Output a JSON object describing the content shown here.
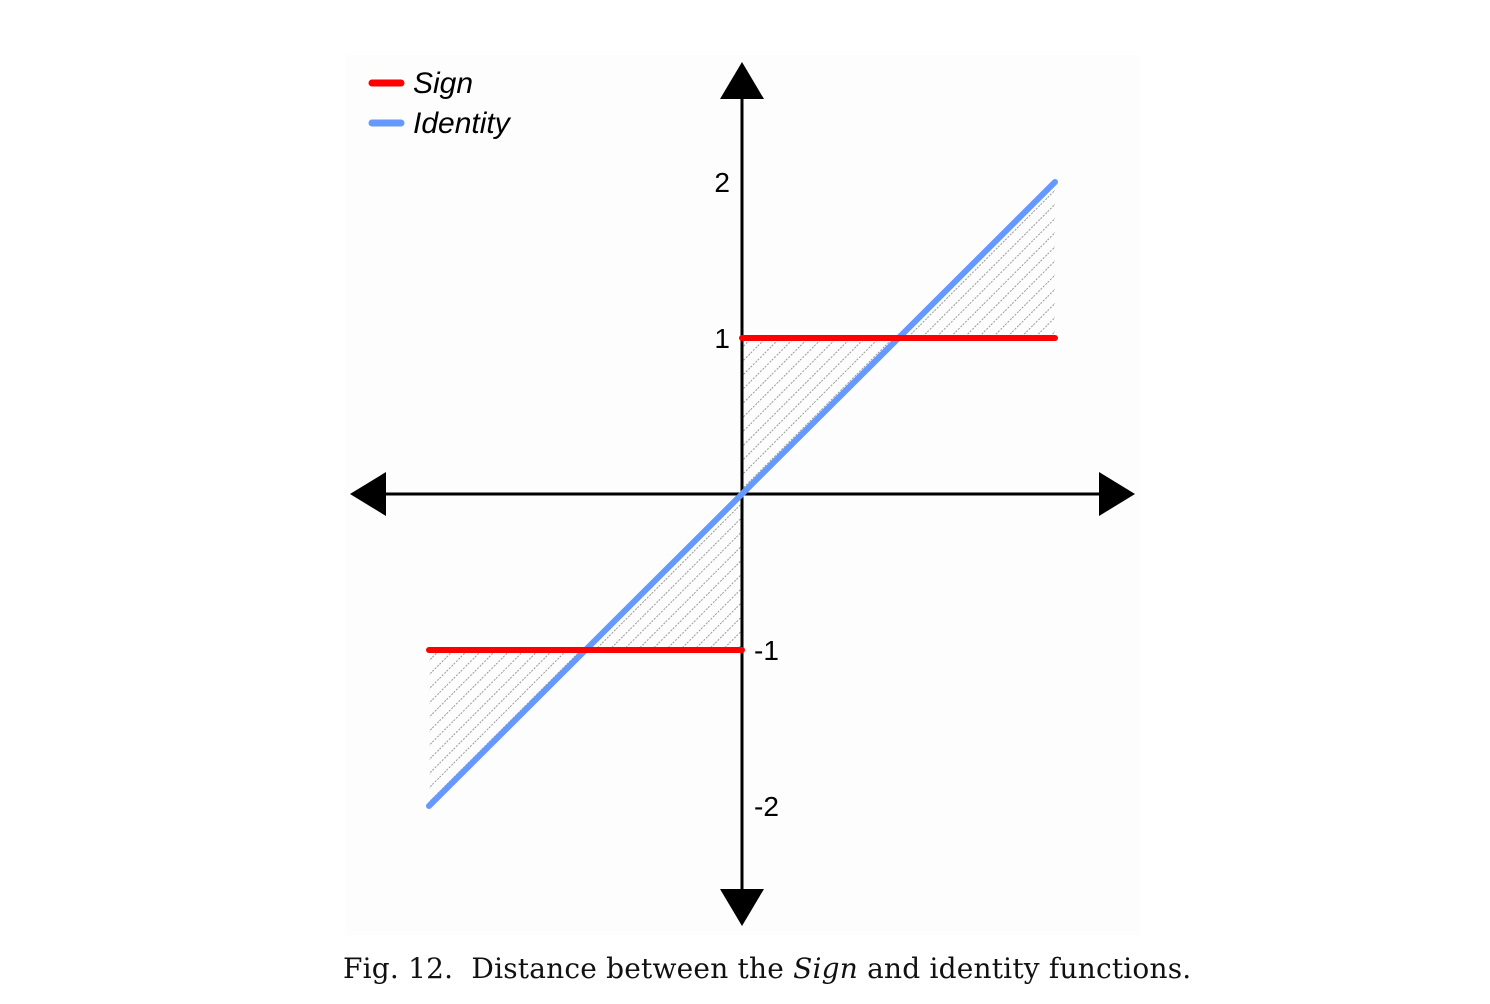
{
  "chart_data": {
    "type": "line",
    "title": "",
    "xlabel": "",
    "ylabel": "",
    "xlim": [
      -2,
      2
    ],
    "ylim": [
      -2,
      2
    ],
    "y_ticks": [
      {
        "value": 2,
        "label": "2"
      },
      {
        "value": 1,
        "label": "1"
      },
      {
        "value": -1,
        "label": "-1"
      },
      {
        "value": -2,
        "label": "-2"
      }
    ],
    "grid": false,
    "legend_placement": "top-left",
    "series": [
      {
        "name": "Sign",
        "color": "#ff0000",
        "segments": [
          [
            [
              -2,
              -1
            ],
            [
              0,
              -1
            ]
          ],
          [
            [
              0,
              1
            ],
            [
              2,
              1
            ]
          ]
        ]
      },
      {
        "name": "Identity",
        "color": "#6699ff",
        "segments": [
          [
            [
              -2,
              -2
            ],
            [
              2,
              2
            ]
          ]
        ]
      }
    ],
    "shaded_region": {
      "description_of": "area between Sign and Identity",
      "pattern": "diagonal-hatch",
      "color": "#999999",
      "x_range": [
        -2,
        2
      ]
    }
  },
  "caption": {
    "prefix": "Fig. 12.  Distance between the ",
    "italic": "Sign",
    "suffix": " and identity functions."
  }
}
